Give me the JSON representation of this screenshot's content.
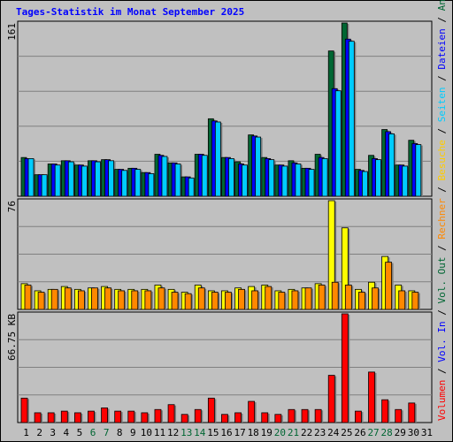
{
  "title": "Tages-Statistik im Monat September 2025",
  "chart_data": {
    "type": "bar",
    "days": [
      "1",
      "2",
      "3",
      "4",
      "5",
      "6",
      "7",
      "8",
      "9",
      "10",
      "11",
      "12",
      "13",
      "14",
      "15",
      "16",
      "17",
      "18",
      "19",
      "20",
      "21",
      "22",
      "23",
      "24",
      "25",
      "26",
      "27",
      "28",
      "29",
      "30",
      "31"
    ],
    "weekend_days": [
      "6",
      "7",
      "13",
      "14",
      "20",
      "21",
      "27",
      "28"
    ],
    "panels": [
      {
        "id": "requests",
        "y_label": "161",
        "y_max": 161,
        "series": [
          {
            "name": "Anfragen",
            "color": "#006633",
            "values": [
              36,
              20,
              30,
              33,
              29,
              33,
              34,
              25,
              26,
              22,
              39,
              31,
              18,
              39,
              72,
              36,
              32,
              57,
              36,
              29,
              33,
              26,
              39,
              135,
              161,
              25,
              38,
              62,
              29,
              52,
              null
            ]
          },
          {
            "name": "Dateien",
            "color": "#0000ff",
            "values": [
              35,
              20,
              30,
              33,
              29,
              33,
              34,
              25,
              26,
              22,
              38,
              31,
              18,
              39,
              70,
              36,
              30,
              56,
              35,
              29,
              31,
              26,
              36,
              100,
              146,
              24,
              35,
              60,
              29,
              49,
              null
            ]
          },
          {
            "name": "Seiten",
            "color": "#00ccff",
            "values": [
              35,
              20,
              29,
              32,
              28,
              32,
              33,
              24,
              25,
              21,
              37,
              30,
              17,
              38,
              69,
              35,
              29,
              55,
              34,
              28,
              30,
              25,
              35,
              98,
              144,
              23,
              34,
              58,
              28,
              48,
              null
            ]
          }
        ]
      },
      {
        "id": "visits",
        "y_label": "76",
        "y_max": 76,
        "series": [
          {
            "name": "Besuche",
            "color": "#ffff00",
            "values": [
              18,
              13,
              14,
              16,
              14,
              15,
              16,
              14,
              14,
              14,
              17,
              14,
              12,
              17,
              13,
              13,
              15,
              16,
              17,
              13,
              14,
              15,
              18,
              76,
              57,
              14,
              19,
              37,
              17,
              13,
              null
            ]
          },
          {
            "name": "Rechner",
            "color": "#ff8800",
            "values": [
              17,
              12,
              14,
              15,
              13,
              15,
              15,
              13,
              13,
              13,
              15,
              12,
              11,
              15,
              12,
              12,
              14,
              13,
              16,
              12,
              13,
              15,
              17,
              19,
              17,
              12,
              15,
              33,
              13,
              12,
              null
            ]
          }
        ]
      },
      {
        "id": "volume",
        "y_label": "66.75 KB",
        "y_max": 66.75,
        "series": [
          {
            "name": "Volumen",
            "color": "#ff0000",
            "values": [
              15,
              6,
              6,
              7,
              6,
              7,
              9,
              7,
              7,
              6,
              8,
              11,
              5,
              8,
              15,
              5,
              6,
              13,
              6,
              5,
              8,
              8,
              8,
              29,
              66.75,
              7,
              31,
              14,
              8,
              12,
              null
            ]
          }
        ]
      }
    ],
    "side_legend": [
      {
        "text": "Volumen",
        "color": "#ff0000"
      },
      {
        "text": " / ",
        "color": "#000000"
      },
      {
        "text": "Vol. In",
        "color": "#0000ff"
      },
      {
        "text": " / ",
        "color": "#000000"
      },
      {
        "text": "Vol. Out",
        "color": "#006633"
      },
      {
        "text": " / ",
        "color": "#000000"
      },
      {
        "text": "Rechner",
        "color": "#ff8800"
      },
      {
        "text": " / ",
        "color": "#000000"
      },
      {
        "text": "Besuche",
        "color": "#ffcc00"
      },
      {
        "text": " / ",
        "color": "#000000"
      },
      {
        "text": "Seiten",
        "color": "#00ccff"
      },
      {
        "text": " / ",
        "color": "#000000"
      },
      {
        "text": "Dateien",
        "color": "#0000ff"
      },
      {
        "text": " / ",
        "color": "#000000"
      },
      {
        "text": "Anfragen",
        "color": "#006633"
      }
    ],
    "grid": true
  }
}
